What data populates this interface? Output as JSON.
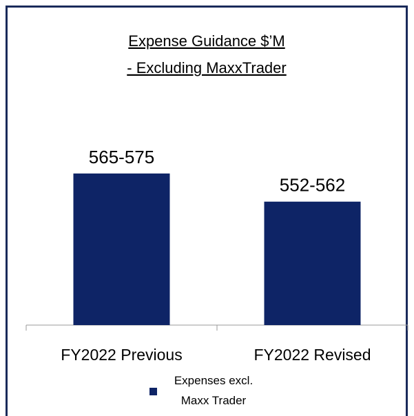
{
  "chart_data": {
    "type": "bar",
    "title": "Expense Guidance $’M",
    "subtitle": "- Excluding MaxxTrader",
    "categories": [
      "FY2022 Previous",
      "FY2022 Revised"
    ],
    "series": [
      {
        "name": "Expenses excl. Maxx Trader",
        "color": "#0e2466",
        "values": [
          570,
          557
        ],
        "value_labels": [
          "565-575",
          "552-562"
        ]
      }
    ],
    "ylim": [
      500,
      590
    ],
    "legend": "bottom"
  }
}
